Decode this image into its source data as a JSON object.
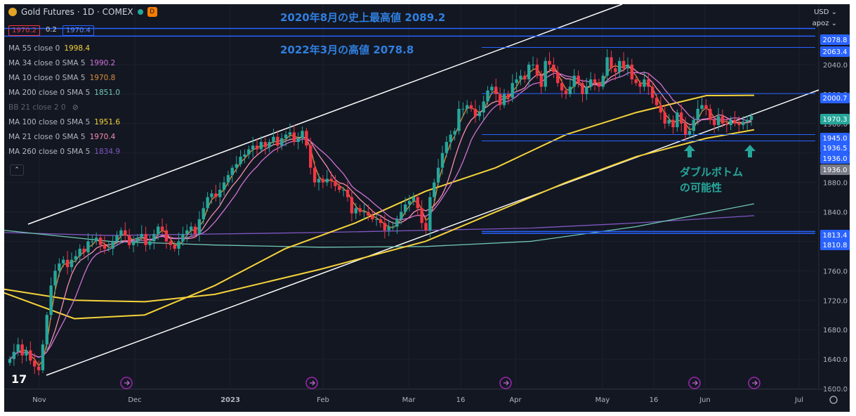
{
  "header": {
    "symbol": "Gold Futures · 1D · COMEX",
    "badge": "D"
  },
  "ohlc_pills": [
    "1970.2",
    "0.2",
    "1970.4"
  ],
  "top_right": {
    "currency": "USD",
    "user": "apoz"
  },
  "legend": [
    {
      "label": "MA 55 close 0",
      "value": "1998.4",
      "color": "#f5d33a"
    },
    {
      "label": "MA 34 close 0 SMA 5",
      "value": "1990.2",
      "color": "#ce73d3"
    },
    {
      "label": "MA 10 close 0 SMA 5",
      "value": "1970.8",
      "color": "#d98e3c"
    },
    {
      "label": "MA 200 close 0 SMA 5",
      "value": "1851.0",
      "color": "#71c7b4"
    },
    {
      "label": "BB 21 close 2 0",
      "value": "",
      "color": "#787b86"
    },
    {
      "label": "MA 100 close 0 SMA 5",
      "value": "1951.6",
      "color": "#f5d33a"
    },
    {
      "label": "MA 21 close 0 SMA 5",
      "value": "1970.4",
      "color": "#f48fb1"
    },
    {
      "label": "MA 260 close 0 SMA 5",
      "value": "1834.9",
      "color": "#7e57c2"
    }
  ],
  "annotations": {
    "ath": "2020年8月の史上最高値 2089.2",
    "high2022": "2022年3月の高値 2078.8",
    "double_bottom_1": "ダブルボトム",
    "double_bottom_2": "の可能性"
  },
  "chart_data": {
    "type": "candlestick",
    "title": "",
    "x_tick_labels": [
      "Nov",
      "Dec",
      "2023",
      "Feb",
      "Mar",
      "16",
      "Apr",
      "May",
      "16",
      "Jun",
      "Jul"
    ],
    "y_tick_labels": [
      1600,
      1640,
      1680,
      1720,
      1760,
      1800,
      1840,
      1880,
      1920,
      1960,
      2000,
      2040
    ],
    "ylim": [
      1600,
      2100
    ],
    "price_tags": [
      {
        "value": "2078.8",
        "color": "#2962ff"
      },
      {
        "value": "2063.4",
        "color": "#2962ff"
      },
      {
        "value": "2000.7",
        "color": "#2962ff"
      },
      {
        "value": "1970.3",
        "color": "#26a69a"
      },
      {
        "value": "1945.0",
        "color": "#2962ff"
      },
      {
        "value": "1936.5",
        "color": "#2962ff"
      },
      {
        "value": "1936.0",
        "color": "#2962ff"
      },
      {
        "value": "1936.0",
        "color": "#787b86"
      },
      {
        "value": "1813.4",
        "color": "#2962ff"
      },
      {
        "value": "1810.8",
        "color": "#2962ff"
      }
    ],
    "horizontal_levels": [
      2089.2,
      2078.8,
      2063.4,
      2000.7,
      1945.0,
      1936.5,
      1813.4,
      1810.8
    ],
    "closes": [
      1640,
      1650,
      1660,
      1645,
      1652,
      1638,
      1630,
      1625,
      1660,
      1700,
      1740,
      1760,
      1770,
      1775,
      1765,
      1775,
      1780,
      1790,
      1785,
      1800,
      1800,
      1805,
      1795,
      1790,
      1790,
      1800,
      1808,
      1815,
      1808,
      1795,
      1800,
      1805,
      1810,
      1795,
      1800,
      1810,
      1820,
      1815,
      1800,
      1795,
      1790,
      1800,
      1810,
      1815,
      1820,
      1810,
      1830,
      1845,
      1860,
      1865,
      1860,
      1870,
      1880,
      1890,
      1900,
      1905,
      1915,
      1918,
      1925,
      1930,
      1925,
      1935,
      1928,
      1935,
      1942,
      1930,
      1940,
      1945,
      1948,
      1935,
      1940,
      1950,
      1930,
      1900,
      1880,
      1885,
      1880,
      1885,
      1882,
      1875,
      1870,
      1870,
      1860,
      1838,
      1845,
      1840,
      1840,
      1835,
      1830,
      1830,
      1825,
      1815,
      1820,
      1820,
      1830,
      1840,
      1850,
      1855,
      1860,
      1845,
      1825,
      1815,
      1860,
      1880,
      1900,
      1920,
      1935,
      1945,
      1950,
      1980,
      1980,
      1985,
      1980,
      1970,
      1975,
      1990,
      2005,
      2010,
      2000,
      1985,
      2000,
      1995,
      2015,
      2020,
      2025,
      2020,
      2040,
      2040,
      2025,
      2010,
      2045,
      2040,
      2030,
      2015,
      2005,
      2000,
      2010,
      2025,
      2015,
      2000,
      2010,
      2020,
      2015,
      2010,
      2025,
      2050,
      2035,
      2030,
      2045,
      2035,
      2040,
      2020,
      2015,
      2010,
      2020,
      2010,
      1995,
      1985,
      1975,
      1960,
      1965,
      1955,
      1975,
      1960,
      1945,
      1950,
      1965,
      1980,
      1985,
      1980,
      1965,
      1958,
      1970,
      1960,
      1958,
      1965,
      1960,
      1958,
      1962,
      1965,
      1970.3
    ],
    "ma_lines": [
      {
        "name": "MA 55",
        "color": "#f5d33a"
      },
      {
        "name": "MA 100",
        "color": "#f5d33a"
      },
      {
        "name": "MA 200",
        "color": "#71c7b4"
      },
      {
        "name": "MA 260",
        "color": "#7e57c2"
      },
      {
        "name": "MA 34",
        "color": "#ce73d3"
      },
      {
        "name": "MA 21",
        "color": "#f48fb1"
      },
      {
        "name": "MA 10",
        "color": "#d98e3c"
      }
    ]
  }
}
